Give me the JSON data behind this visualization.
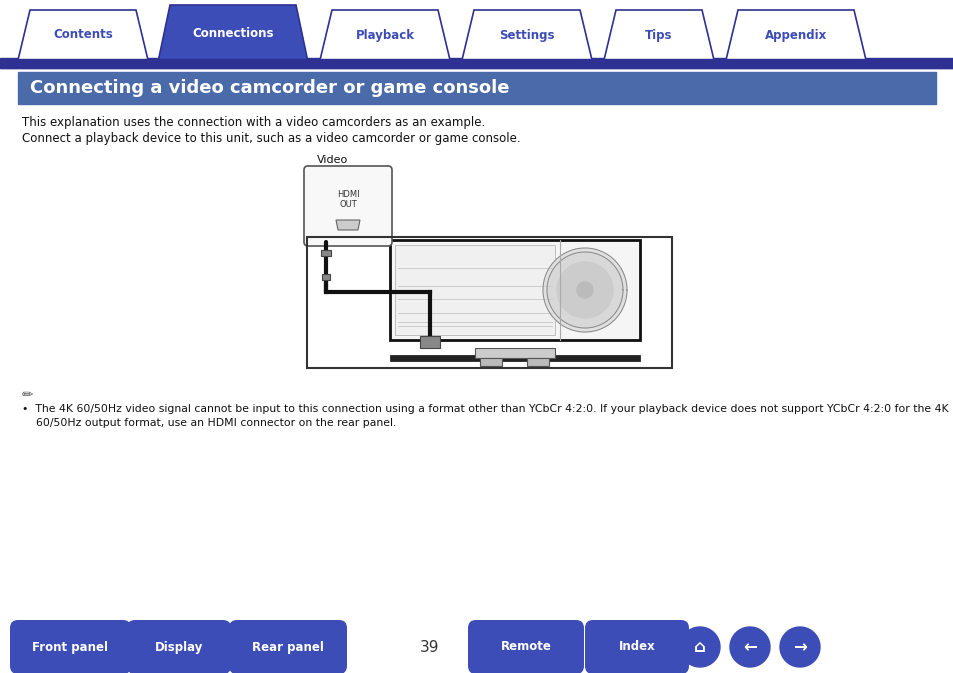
{
  "bg_color": "#ffffff",
  "tab_bar_color": "#2e3192",
  "tab_items": [
    "Contents",
    "Connections",
    "Playback",
    "Settings",
    "Tips",
    "Appendix"
  ],
  "tab_active_index": 1,
  "tab_active_bg": "#3d4db7",
  "tab_inactive_bg": "#ffffff",
  "tab_active_text_color": "#ffffff",
  "tab_inactive_text_color": "#3d4db7",
  "title_bg": "#4a6aaa",
  "title_text": "Connecting a video camcorder or game console",
  "title_text_color": "#ffffff",
  "body_line1": "This explanation uses the connection with a video camcorders as an example.",
  "body_line2": "Connect a playback device to this unit, such as a video camcorder or game console.",
  "note_line1": "•  The 4K 60/50Hz video signal cannot be input to this connection using a format other than YCbCr 4:2:0. If your playback device does not support YCbCr 4:2:0 for the 4K",
  "note_line2": "    60/50Hz output format, use an HDMI connector on the rear panel.",
  "bottom_buttons": [
    "Front panel",
    "Display",
    "Rear panel",
    "Remote",
    "Index"
  ],
  "bottom_btn_bg": "#3d4db7",
  "bottom_btn_text": "#ffffff",
  "page_number": "39"
}
